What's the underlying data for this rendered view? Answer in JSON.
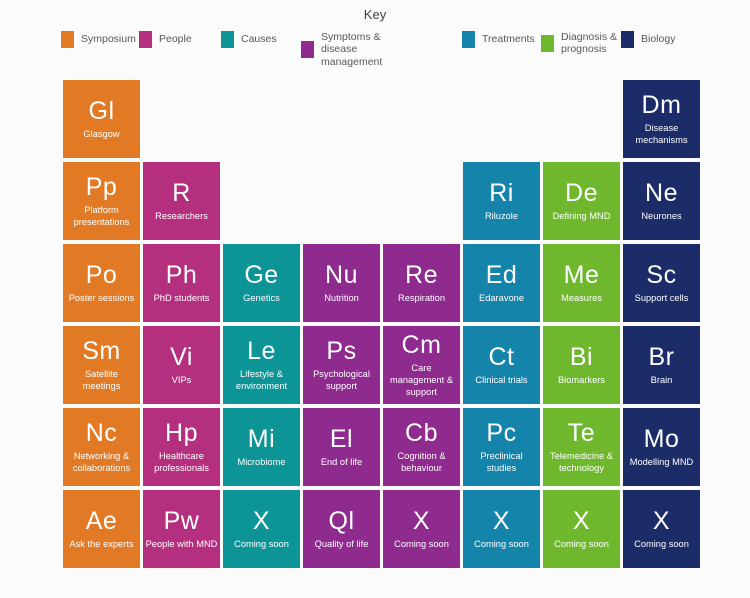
{
  "palette": {
    "symposium": "#E27A25",
    "people": "#B42F7E",
    "causes": "#0C9496",
    "symptoms": "#8F2A8F",
    "treatments": "#1484AB",
    "diagnosis": "#6FB82D",
    "biology": "#1B2C68"
  },
  "key": {
    "title": "Key",
    "items": [
      {
        "label": "Symposium",
        "category": "symposium"
      },
      {
        "label": "People",
        "category": "people"
      },
      {
        "label": "Causes",
        "category": "causes"
      },
      {
        "label": "Symptoms & disease management",
        "category": "symptoms"
      },
      {
        "label": "Treatments",
        "category": "treatments"
      },
      {
        "label": "Diagnosis & prognosis",
        "category": "diagnosis"
      },
      {
        "label": "Biology",
        "category": "biology"
      }
    ]
  },
  "tiles": [
    {
      "symbol": "Gl",
      "name": "Glasgow",
      "category": "symposium",
      "row": 1,
      "col": 1
    },
    {
      "symbol": "Dm",
      "name": "Disease mechanisms",
      "category": "biology",
      "row": 1,
      "col": 8
    },
    {
      "symbol": "Pp",
      "name": "Platform presentations",
      "category": "symposium",
      "row": 2,
      "col": 1
    },
    {
      "symbol": "R",
      "name": "Researchers",
      "category": "people",
      "row": 2,
      "col": 2
    },
    {
      "symbol": "Ri",
      "name": "Riluzole",
      "category": "treatments",
      "row": 2,
      "col": 6
    },
    {
      "symbol": "De",
      "name": "Defining MND",
      "category": "diagnosis",
      "row": 2,
      "col": 7
    },
    {
      "symbol": "Ne",
      "name": "Neurones",
      "category": "biology",
      "row": 2,
      "col": 8
    },
    {
      "symbol": "Po",
      "name": "Poster sessions",
      "category": "symposium",
      "row": 3,
      "col": 1
    },
    {
      "symbol": "Ph",
      "name": "PhD students",
      "category": "people",
      "row": 3,
      "col": 2
    },
    {
      "symbol": "Ge",
      "name": "Genetics",
      "category": "causes",
      "row": 3,
      "col": 3
    },
    {
      "symbol": "Nu",
      "name": "Nutrition",
      "category": "symptoms",
      "row": 3,
      "col": 4
    },
    {
      "symbol": "Re",
      "name": "Respiration",
      "category": "symptoms",
      "row": 3,
      "col": 5
    },
    {
      "symbol": "Ed",
      "name": "Edaravone",
      "category": "treatments",
      "row": 3,
      "col": 6
    },
    {
      "symbol": "Me",
      "name": "Measures",
      "category": "diagnosis",
      "row": 3,
      "col": 7
    },
    {
      "symbol": "Sc",
      "name": "Support cells",
      "category": "biology",
      "row": 3,
      "col": 8
    },
    {
      "symbol": "Sm",
      "name": "Satellite meetings",
      "category": "symposium",
      "row": 4,
      "col": 1
    },
    {
      "symbol": "Vi",
      "name": "VIPs",
      "category": "people",
      "row": 4,
      "col": 2
    },
    {
      "symbol": "Le",
      "name": "Lifestyle & environment",
      "category": "causes",
      "row": 4,
      "col": 3
    },
    {
      "symbol": "Ps",
      "name": "Psychological support",
      "category": "symptoms",
      "row": 4,
      "col": 4
    },
    {
      "symbol": "Cm",
      "name": "Care management & support",
      "category": "symptoms",
      "row": 4,
      "col": 5
    },
    {
      "symbol": "Ct",
      "name": "Clinical trials",
      "category": "treatments",
      "row": 4,
      "col": 6
    },
    {
      "symbol": "Bi",
      "name": "Biomarkers",
      "category": "diagnosis",
      "row": 4,
      "col": 7
    },
    {
      "symbol": "Br",
      "name": "Brain",
      "category": "biology",
      "row": 4,
      "col": 8
    },
    {
      "symbol": "Nc",
      "name": "Networking & collaborations",
      "category": "symposium",
      "row": 5,
      "col": 1
    },
    {
      "symbol": "Hp",
      "name": "Healthcare professionals",
      "category": "people",
      "row": 5,
      "col": 2
    },
    {
      "symbol": "Mi",
      "name": "Microbiome",
      "category": "causes",
      "row": 5,
      "col": 3
    },
    {
      "symbol": "El",
      "name": "End of life",
      "category": "symptoms",
      "row": 5,
      "col": 4
    },
    {
      "symbol": "Cb",
      "name": "Cognition & behaviour",
      "category": "symptoms",
      "row": 5,
      "col": 5
    },
    {
      "symbol": "Pc",
      "name": "Preclinical studies",
      "category": "treatments",
      "row": 5,
      "col": 6
    },
    {
      "symbol": "Te",
      "name": "Telemedicine & technology",
      "category": "diagnosis",
      "row": 5,
      "col": 7
    },
    {
      "symbol": "Mo",
      "name": "Modelling MND",
      "category": "biology",
      "row": 5,
      "col": 8
    },
    {
      "symbol": "Ae",
      "name": "Ask the experts",
      "category": "symposium",
      "row": 6,
      "col": 1
    },
    {
      "symbol": "Pw",
      "name": "People with MND",
      "category": "people",
      "row": 6,
      "col": 2
    },
    {
      "symbol": "X",
      "name": "Coming soon",
      "category": "causes",
      "row": 6,
      "col": 3
    },
    {
      "symbol": "Ql",
      "name": "Quality of life",
      "category": "symptoms",
      "row": 6,
      "col": 4
    },
    {
      "symbol": "X",
      "name": "Coming soon",
      "category": "symptoms",
      "row": 6,
      "col": 5
    },
    {
      "symbol": "X",
      "name": "Coming soon",
      "category": "treatments",
      "row": 6,
      "col": 6
    },
    {
      "symbol": "X",
      "name": "Coming soon",
      "category": "diagnosis",
      "row": 6,
      "col": 7
    },
    {
      "symbol": "X",
      "name": "Coming soon",
      "category": "biology",
      "row": 6,
      "col": 8
    }
  ]
}
